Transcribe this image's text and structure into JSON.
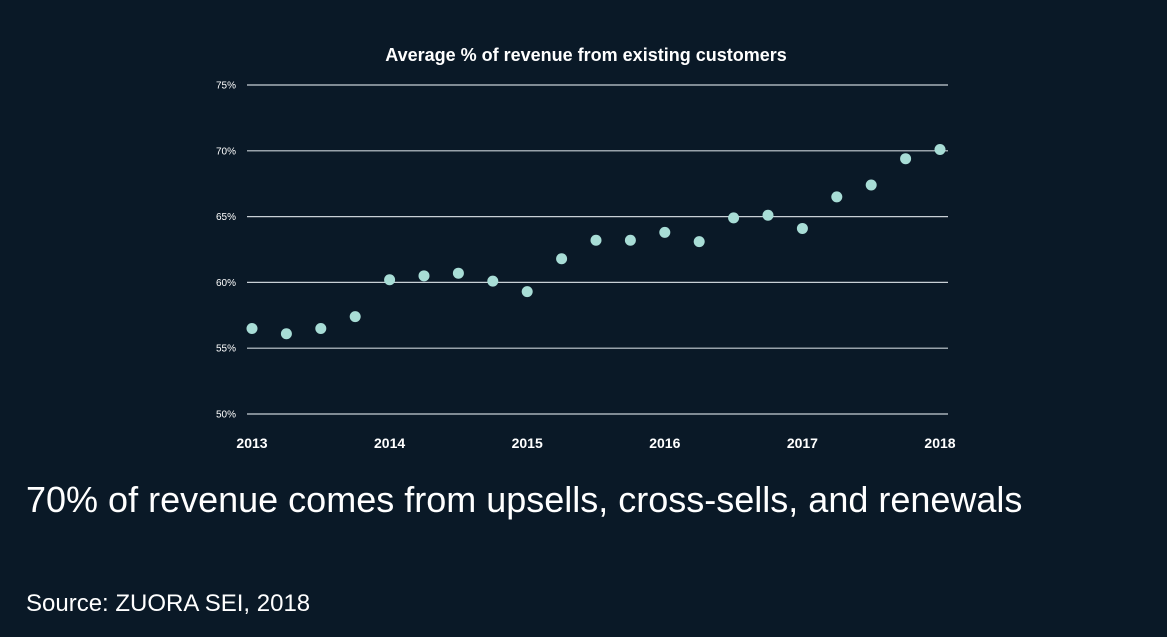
{
  "chart_data": {
    "type": "scatter",
    "title": "Average % of revenue from existing customers",
    "xlabel": "",
    "ylabel": "",
    "x_ticks": [
      "2013",
      "2014",
      "2015",
      "2016",
      "2017",
      "2018"
    ],
    "y_ticks": [
      "50%",
      "55%",
      "60%",
      "65%",
      "70%",
      "75%"
    ],
    "xlim": [
      2013,
      2018
    ],
    "ylim": [
      50,
      75
    ],
    "grid": "horizontal",
    "colors": {
      "points": "#a8ddd6",
      "grid": "#c8d0d6",
      "background": "#0a1927"
    },
    "x": [
      2013,
      2013.25,
      2013.5,
      2013.75,
      2014,
      2014.25,
      2014.5,
      2014.75,
      2015,
      2015.25,
      2015.5,
      2015.75,
      2016,
      2016.25,
      2016.5,
      2016.75,
      2017,
      2017.25,
      2017.5,
      2017.75,
      2018
    ],
    "values": [
      56.5,
      56.1,
      56.5,
      57.4,
      60.2,
      60.5,
      60.7,
      60.1,
      59.3,
      61.8,
      63.2,
      63.2,
      63.8,
      63.1,
      64.9,
      65.1,
      64.1,
      66.5,
      67.4,
      69.4,
      70.1
    ]
  },
  "headline": "70% of revenue comes from upsells, cross-sells, and renewals",
  "source": "Source: ZUORA SEI, 2018"
}
